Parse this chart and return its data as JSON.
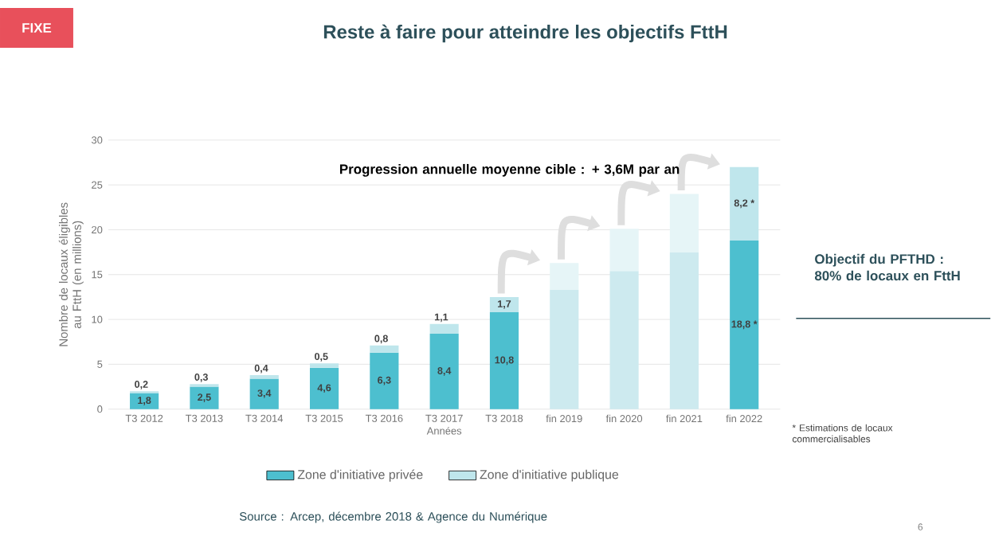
{
  "chart_data": {
    "type": "bar",
    "stacked": true,
    "title": "Reste à faire pour atteindre les objectifs FttH",
    "categories": [
      "T3 2012",
      "T3 2013",
      "T3 2014",
      "T3 2015",
      "T3 2016",
      "T3 2017",
      "T3 2018",
      "fin 2019",
      "fin 2020",
      "fin 2021",
      "fin 2022"
    ],
    "series": [
      {
        "name": "Zone d'initiative privée",
        "color": "#4dbfcf",
        "colors": [
          "#4dbfcf",
          "#4dbfcf",
          "#4dbfcf",
          "#4dbfcf",
          "#4dbfcf",
          "#4dbfcf",
          "#4dbfcf",
          "#cdeaef",
          "#cdeaef",
          "#cdeaef",
          "#4dbfcf"
        ],
        "values": [
          1.8,
          2.5,
          3.4,
          4.6,
          6.3,
          8.4,
          10.8,
          13.3,
          15.4,
          17.5,
          18.8
        ],
        "value_labels": [
          "1,8",
          "2,5",
          "3,4",
          "4,6",
          "6,3",
          "8,4",
          "10,8",
          null,
          null,
          null,
          "18,8 *"
        ]
      },
      {
        "name": "Zone d'initiative publique",
        "color": "#bfe6ec",
        "colors": [
          "#bfe6ec",
          "#bfe6ec",
          "#bfe6ec",
          "#bfe6ec",
          "#bfe6ec",
          "#bfe6ec",
          "#bfe6ec",
          "#e6f5f7",
          "#e6f5f7",
          "#e6f5f7",
          "#bfe6ec"
        ],
        "values": [
          0.2,
          0.3,
          0.4,
          0.5,
          0.8,
          1.1,
          1.7,
          3.0,
          4.7,
          6.5,
          8.2
        ],
        "value_labels": [
          "0,2",
          "0,3",
          "0,4",
          "0,5",
          "0,8",
          "1,1",
          "1,7",
          null,
          null,
          null,
          "8,2 *"
        ]
      }
    ],
    "xlabel": "Années",
    "ylabel": "Nombre de locaux éligibles au FttH (en millions)",
    "ylim": [
      0,
      30
    ],
    "yticks": [
      0,
      5,
      10,
      15,
      20,
      25,
      30
    ],
    "grid": "y",
    "legend": "bottom",
    "annotations": [
      "FIXE",
      "Progression annuelle moyenne cible : + 3,6M par an",
      "Objectif du PFTHD : 80% de locaux en FttH",
      "* Estimations de locaux commercialisables",
      "Source : Arcep, décembre 2018 & Agence du Numérique",
      "6"
    ]
  }
}
